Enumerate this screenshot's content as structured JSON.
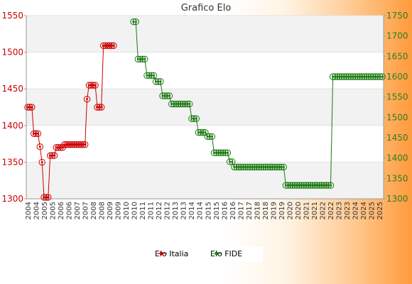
{
  "chart_data": {
    "type": "line",
    "title": "Grafico Elo",
    "y_left": {
      "lim": [
        1300,
        1550
      ],
      "ticks": [
        1300,
        1350,
        1400,
        1450,
        1500,
        1550
      ]
    },
    "y_right": {
      "lim": [
        1300,
        1750
      ],
      "ticks": [
        1300,
        1350,
        1400,
        1450,
        1500,
        1550,
        1600,
        1650,
        1700,
        1750
      ]
    },
    "x_tick_labels": [
      "2004",
      "2004",
      "2005",
      "2005",
      "2006",
      "2006",
      "2007",
      "2007",
      "2008",
      "2008",
      "2009",
      "2009",
      "2010",
      "2010",
      "2011",
      "2011",
      "2012",
      "2012",
      "2013",
      "2013",
      "2014",
      "2014",
      "2015",
      "2015",
      "2016",
      "2016",
      "2017",
      "2017",
      "2018",
      "2018",
      "2019",
      "2019",
      "2020",
      "2020",
      "2021",
      "2021",
      "2022",
      "2022",
      "2023",
      "2023",
      "2024",
      "2024",
      "2025",
      "2025"
    ],
    "series": [
      {
        "name": "Elo Italia",
        "axis": "left",
        "color": "#cc0000",
        "values": [
          1425,
          1425,
          1425,
          1389,
          1389,
          1389,
          1371,
          1350,
          1302,
          1302,
          1302,
          1359,
          1359,
          1359,
          1370,
          1370,
          1370,
          1370,
          1374,
          1374,
          1374,
          1374,
          1374,
          1374,
          1374,
          1374,
          1374,
          1374,
          1374,
          1436,
          1455,
          1455,
          1455,
          1455,
          1425,
          1425,
          1425,
          1509,
          1509,
          1509,
          1509,
          1509,
          1509
        ]
      },
      {
        "name": "Elo FIDE",
        "axis": "right",
        "color": "#1a7a10",
        "values": [
          1735,
          1735,
          1643,
          1643,
          1643,
          1643,
          1603,
          1603,
          1603,
          1603,
          1588,
          1588,
          1588,
          1553,
          1553,
          1553,
          1553,
          1533,
          1533,
          1533,
          1533,
          1533,
          1533,
          1533,
          1533,
          1533,
          1497,
          1497,
          1497,
          1463,
          1463,
          1463,
          1463,
          1453,
          1453,
          1453,
          1413,
          1413,
          1413,
          1413,
          1413,
          1413,
          1413,
          1391,
          1391,
          1378,
          1378,
          1378,
          1378,
          1378,
          1378,
          1378,
          1378,
          1378,
          1378,
          1378,
          1378,
          1378,
          1378,
          1378,
          1378,
          1378,
          1378,
          1378,
          1378,
          1378,
          1378,
          1378,
          1333,
          1333,
          1333,
          1333,
          1333,
          1333,
          1333,
          1333,
          1333,
          1333,
          1333,
          1333,
          1333,
          1333,
          1333,
          1333,
          1333,
          1333,
          1333,
          1333,
          1333,
          1600,
          1600,
          1600,
          1600,
          1600,
          1600,
          1600,
          1600,
          1600,
          1600,
          1600,
          1600,
          1600,
          1600,
          1600,
          1600,
          1600,
          1600,
          1600,
          1600,
          1600,
          1600,
          1600
        ]
      }
    ],
    "legend": [
      "Elo Italia",
      "Elo FIDE"
    ],
    "legend_position": "bottom",
    "grid": "horizontal bands"
  }
}
